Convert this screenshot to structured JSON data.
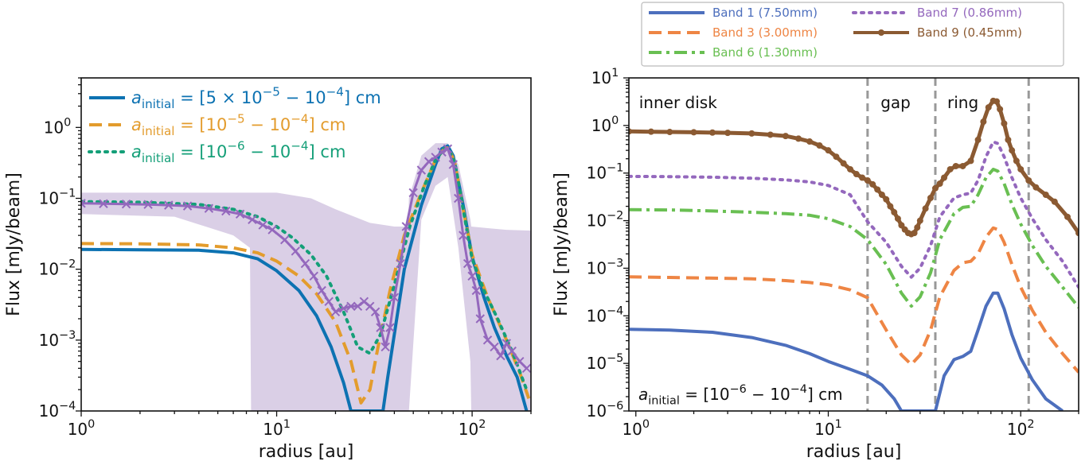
{
  "colors": {
    "blue_left": "#0d72b2",
    "orange_left": "#e39c2d",
    "green_left": "#149f78",
    "purple_data": "#9468bd",
    "band1": "#4d6fbd",
    "band3": "#ee8544",
    "band6": "#69bf52",
    "band7": "#9468bd",
    "band9": "#8b5a32",
    "gap_line": "#999999",
    "shade": "#dacfe6"
  },
  "chart_data": [
    {
      "type": "line",
      "xlabel": "radius [au]",
      "ylabel": "Flux [mJy/beam]",
      "xscale": "log",
      "yscale": "log",
      "xlim": [
        1,
        200
      ],
      "ylim": [
        0.0001,
        5
      ],
      "x_ticks": [
        {
          "value": 1,
          "base": "10",
          "exp": "0"
        },
        {
          "value": 10,
          "base": "10",
          "exp": "1"
        },
        {
          "value": 100,
          "base": "10",
          "exp": "2"
        }
      ],
      "y_ticks": [
        {
          "value": 0.0001,
          "base": "10",
          "exp": "−4"
        },
        {
          "value": 0.001,
          "base": "10",
          "exp": "−3"
        },
        {
          "value": 0.01,
          "base": "10",
          "exp": "−2"
        },
        {
          "value": 0.1,
          "base": "10",
          "exp": "−1"
        },
        {
          "value": 1,
          "base": "10",
          "exp": "0"
        }
      ],
      "legend": {
        "placement": "top-left",
        "entries": [
          {
            "prefix": "a",
            "sub": "initial",
            "text": " = [5 × 10",
            "exp1": "−5",
            "mid": " − 10",
            "exp2": "−4",
            "tail": "] cm"
          },
          {
            "prefix": "a",
            "sub": "initial",
            "text": " = [10",
            "exp1": "−5",
            "mid": " − 10",
            "exp2": "−4",
            "tail": "] cm"
          },
          {
            "prefix": "a",
            "sub": "initial",
            "text": " = [10",
            "exp1": "−6",
            "mid": " − 10",
            "exp2": "−4",
            "tail": "] cm"
          }
        ]
      },
      "series": [
        {
          "style": "solid",
          "color_key": "blue_left",
          "x": [
            1,
            2,
            4,
            6,
            8,
            10,
            13,
            16,
            19,
            22,
            24,
            35,
            37,
            45,
            55,
            65,
            70,
            75,
            80,
            90,
            100,
            115,
            130,
            150,
            170,
            190
          ],
          "y": [
            0.019,
            0.0188,
            0.0185,
            0.017,
            0.014,
            0.0095,
            0.005,
            0.0022,
            0.0008,
            0.00025,
            0.0001,
            0.0001,
            0.0003,
            0.01,
            0.08,
            0.3,
            0.5,
            0.55,
            0.4,
            0.08,
            0.015,
            0.004,
            0.0015,
            0.0006,
            0.0003,
            0.0001
          ]
        },
        {
          "style": "dashed",
          "color_key": "orange_left",
          "x": [
            1,
            2,
            4,
            6,
            8,
            10,
            13,
            16,
            20,
            24,
            27,
            30,
            33,
            38,
            45,
            55,
            65,
            72,
            76,
            82,
            90,
            100,
            120,
            150,
            175,
            195
          ],
          "y": [
            0.023,
            0.0228,
            0.022,
            0.02,
            0.017,
            0.013,
            0.008,
            0.0045,
            0.0018,
            0.0005,
            0.00013,
            0.0002,
            0.0008,
            0.005,
            0.03,
            0.12,
            0.35,
            0.5,
            0.52,
            0.3,
            0.07,
            0.016,
            0.004,
            0.001,
            0.00035,
            0.00015
          ]
        },
        {
          "style": "dotted",
          "color_key": "green_left",
          "x": [
            1,
            2,
            4,
            6,
            8,
            10,
            12,
            15,
            18,
            22,
            26,
            30,
            34,
            40,
            48,
            57,
            65,
            72,
            76,
            82,
            90,
            100,
            115,
            135,
            160,
            190
          ],
          "y": [
            0.09,
            0.088,
            0.082,
            0.07,
            0.055,
            0.04,
            0.028,
            0.016,
            0.008,
            0.0025,
            0.0008,
            0.00065,
            0.0012,
            0.006,
            0.04,
            0.15,
            0.35,
            0.5,
            0.5,
            0.3,
            0.07,
            0.014,
            0.005,
            0.002,
            0.0007,
            0.0002
          ]
        },
        {
          "style": "marker-x",
          "color_key": "purple_data",
          "x": [
            1,
            1.3,
            1.7,
            2.2,
            2.8,
            3.5,
            4.5,
            5.5,
            6.5,
            7.5,
            8.5,
            9.5,
            11,
            12.5,
            14,
            15.5,
            17,
            18.5,
            20,
            22,
            24,
            26,
            28,
            30,
            32,
            34,
            36,
            38,
            40,
            43,
            46,
            50,
            55,
            60,
            65,
            70,
            75,
            80,
            85,
            90,
            95,
            100,
            105,
            110,
            120,
            130,
            140,
            150,
            160,
            175,
            190
          ],
          "y": [
            0.085,
            0.084,
            0.083,
            0.082,
            0.08,
            0.078,
            0.072,
            0.066,
            0.06,
            0.05,
            0.042,
            0.036,
            0.026,
            0.018,
            0.012,
            0.008,
            0.005,
            0.0035,
            0.0025,
            0.0028,
            0.003,
            0.003,
            0.0035,
            0.003,
            0.0025,
            0.0015,
            0.0008,
            0.0015,
            0.004,
            0.012,
            0.04,
            0.12,
            0.25,
            0.33,
            0.38,
            0.45,
            0.5,
            0.3,
            0.1,
            0.03,
            0.012,
            0.008,
            0.005,
            0.002,
            0.001,
            0.0008,
            0.0006,
            0.0009,
            0.0007,
            0.0005,
            0.0004
          ]
        },
        {
          "style": "band",
          "color_key": "shade",
          "x": [
            1,
            3,
            6,
            7.3,
            7.4,
            10,
            15,
            20,
            30,
            40,
            47,
            47.5,
            55,
            65,
            75,
            85,
            98,
            99,
            120,
            150,
            200
          ],
          "upper": [
            0.12,
            0.12,
            0.12,
            0.12,
            0.12,
            0.12,
            0.1,
            0.07,
            0.045,
            0.04,
            0.04,
            0.1,
            0.4,
            0.6,
            0.6,
            0.3,
            0.05,
            0.04,
            0.038,
            0.036,
            0.035
          ],
          "lower": [
            0.06,
            0.055,
            0.03,
            0.02,
            0.0001,
            0.0001,
            0.0001,
            0.0001,
            0.0001,
            0.0001,
            0.0001,
            0.0001,
            0.05,
            0.15,
            0.2,
            0.02,
            0.0005,
            0.0001,
            0.0001,
            0.0001,
            0.0001
          ]
        }
      ]
    },
    {
      "type": "line",
      "xlabel": "radius [au]",
      "ylabel": "Flux [mJy/beam]",
      "xscale": "log",
      "yscale": "log",
      "xlim": [
        0.92,
        200
      ],
      "ylim": [
        1e-06,
        10
      ],
      "x_ticks": [
        {
          "value": 1,
          "base": "10",
          "exp": "0"
        },
        {
          "value": 10,
          "base": "10",
          "exp": "1"
        },
        {
          "value": 100,
          "base": "10",
          "exp": "2"
        }
      ],
      "y_ticks": [
        {
          "value": 1e-06,
          "base": "10",
          "exp": "−6"
        },
        {
          "value": 1e-05,
          "base": "10",
          "exp": "−5"
        },
        {
          "value": 0.0001,
          "base": "10",
          "exp": "−4"
        },
        {
          "value": 0.001,
          "base": "10",
          "exp": "−3"
        },
        {
          "value": 0.01,
          "base": "10",
          "exp": "−2"
        },
        {
          "value": 0.1,
          "base": "10",
          "exp": "−1"
        },
        {
          "value": 1,
          "base": "10",
          "exp": "0"
        },
        {
          "value": 10,
          "base": "10",
          "exp": "1"
        }
      ],
      "vlines": [
        16,
        36,
        110
      ],
      "regions": [
        {
          "label": "inner disk",
          "x": 1
        },
        {
          "label": "gap",
          "x": 18
        },
        {
          "label": "ring",
          "x": 40
        }
      ],
      "annotation": {
        "prefix": "a",
        "sub": "initial",
        "text": " = [10",
        "exp1": "−6",
        "mid": " − 10",
        "exp2": "−4",
        "tail": "] cm"
      },
      "legend": {
        "placement": "top, outside",
        "entries": [
          {
            "name": "Band 1 (7.50mm)",
            "style": "solid",
            "color_key": "band1"
          },
          {
            "name": "Band 3 (3.00mm)",
            "style": "dashed",
            "color_key": "band3"
          },
          {
            "name": "Band 6 (1.30mm)",
            "style": "dashdot",
            "color_key": "band6"
          },
          {
            "name": "Band 7 (0.86mm)",
            "style": "dotted",
            "color_key": "band7"
          },
          {
            "name": "Band 9 (0.45mm)",
            "style": "solid-dot",
            "color_key": "band9"
          }
        ]
      },
      "series": [
        {
          "name": "Band 1 (7.50mm)",
          "style": "solid",
          "color_key": "band1",
          "x": [
            0.92,
            1.5,
            2.5,
            4,
            6,
            8,
            10,
            13,
            16,
            19,
            22,
            24,
            36,
            40,
            45,
            50,
            55,
            60,
            66,
            72,
            76,
            82,
            90,
            100,
            115,
            135,
            165
          ],
          "y": [
            5.2e-05,
            5e-05,
            4.5e-05,
            3.5e-05,
            2.4e-05,
            1.6e-05,
            1.1e-05,
            7.5e-06,
            5.5e-06,
            3.5e-06,
            1.8e-06,
            1e-06,
            1e-06,
            5.5e-06,
            1.2e-05,
            1.4e-05,
            1.8e-05,
            5e-05,
            0.00016,
            0.0003,
            0.0003,
            0.00014,
            4e-05,
            1.3e-05,
            4.5e-06,
            1.8e-06,
            1e-06
          ]
        },
        {
          "name": "Band 3 (3.00mm)",
          "style": "dashed",
          "color_key": "band3",
          "x": [
            0.92,
            1.5,
            2.5,
            4,
            6,
            8,
            10,
            13,
            16,
            20,
            24,
            27,
            30,
            34,
            38,
            45,
            50,
            55,
            60,
            66,
            72,
            76,
            82,
            90,
            100,
            115,
            135,
            165,
            200
          ],
          "y": [
            0.00066,
            0.00064,
            0.00062,
            0.0006,
            0.00055,
            0.0005,
            0.00045,
            0.00035,
            0.00024,
            5e-05,
            1.5e-05,
            9.5e-06,
            1.5e-05,
            5e-05,
            0.00025,
            0.0009,
            0.0013,
            0.0014,
            0.002,
            0.0045,
            0.007,
            0.0065,
            0.0035,
            0.0012,
            0.0004,
            0.00013,
            4.5e-05,
            1.6e-05,
            6.5e-06
          ]
        },
        {
          "name": "Band 6 (1.30mm)",
          "style": "dashdot",
          "color_key": "band6",
          "x": [
            0.92,
            1.5,
            2.5,
            4,
            6,
            8,
            10,
            13,
            16,
            20,
            24,
            27,
            30,
            34,
            38,
            45,
            50,
            55,
            60,
            66,
            72,
            76,
            82,
            90,
            100,
            115,
            135,
            165,
            200
          ],
          "y": [
            0.017,
            0.0168,
            0.016,
            0.015,
            0.014,
            0.013,
            0.011,
            0.0075,
            0.004,
            0.0012,
            0.0003,
            0.00016,
            0.00025,
            0.0008,
            0.004,
            0.014,
            0.019,
            0.02,
            0.035,
            0.08,
            0.12,
            0.11,
            0.06,
            0.022,
            0.0085,
            0.003,
            0.0011,
            0.0004,
            0.00015
          ]
        },
        {
          "name": "Band 7 (0.86mm)",
          "style": "dotted",
          "color_key": "band7",
          "x": [
            0.92,
            1.5,
            2.5,
            4,
            6,
            8,
            10,
            13,
            16,
            20,
            24,
            27,
            30,
            34,
            38,
            45,
            50,
            55,
            60,
            66,
            72,
            76,
            82,
            90,
            100,
            115,
            135,
            165,
            200
          ],
          "y": [
            0.085,
            0.084,
            0.082,
            0.078,
            0.072,
            0.065,
            0.055,
            0.035,
            0.0095,
            0.0035,
            0.0011,
            0.00065,
            0.001,
            0.003,
            0.012,
            0.03,
            0.035,
            0.038,
            0.07,
            0.22,
            0.45,
            0.42,
            0.22,
            0.08,
            0.03,
            0.011,
            0.004,
            0.0014,
            0.0004
          ]
        },
        {
          "name": "Band 9 (0.45mm)",
          "style": "solid-dot",
          "color_key": "band9",
          "x": [
            0.92,
            1.2,
            1.5,
            2,
            2.5,
            3,
            4,
            5,
            6,
            7,
            8,
            9,
            10,
            11,
            12,
            13,
            14,
            15,
            16,
            17,
            18,
            19,
            20,
            21,
            22,
            23,
            24,
            25,
            26,
            27,
            28,
            29,
            30,
            32,
            34,
            36,
            38,
            40,
            43,
            46,
            50,
            55,
            60,
            64,
            68,
            72,
            75,
            78,
            82,
            86,
            90,
            95,
            100,
            110,
            120,
            135,
            150,
            175,
            200
          ],
          "y": [
            0.75,
            0.74,
            0.73,
            0.72,
            0.71,
            0.7,
            0.68,
            0.64,
            0.6,
            0.53,
            0.46,
            0.38,
            0.3,
            0.22,
            0.16,
            0.12,
            0.095,
            0.08,
            0.07,
            0.058,
            0.045,
            0.035,
            0.028,
            0.02,
            0.015,
            0.011,
            0.008,
            0.0065,
            0.0055,
            0.0052,
            0.0055,
            0.0072,
            0.01,
            0.018,
            0.03,
            0.048,
            0.06,
            0.08,
            0.12,
            0.14,
            0.14,
            0.18,
            0.5,
            1.2,
            2.4,
            3.3,
            3.2,
            2.2,
            1.1,
            0.5,
            0.3,
            0.18,
            0.12,
            0.07,
            0.05,
            0.035,
            0.025,
            0.012,
            0.0055
          ]
        }
      ]
    }
  ]
}
